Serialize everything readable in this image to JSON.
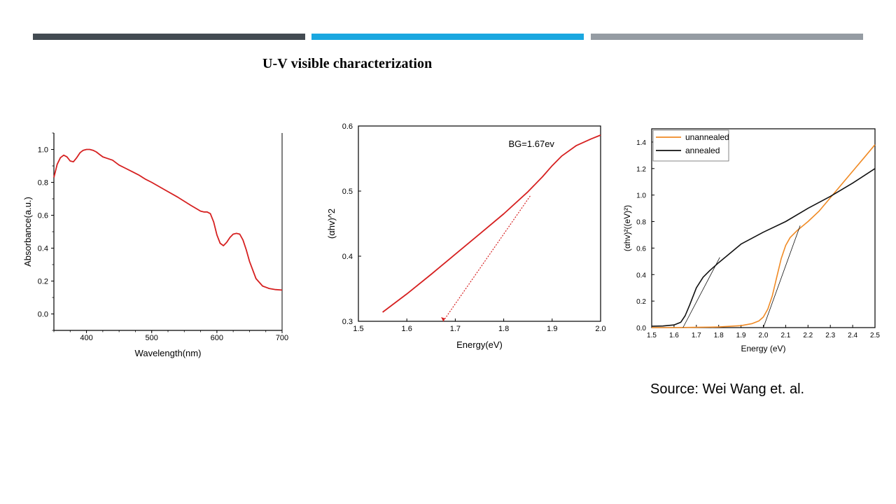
{
  "slide": {
    "title": "U-V visible characterization",
    "source": "Source: Wei Wang et. al.",
    "colors": {
      "bar_dark": "#434b52",
      "bar_blue": "#1aa7e0",
      "bar_grey": "#959ca3"
    }
  },
  "chart_data": [
    {
      "type": "line",
      "title": "",
      "xlabel": "Wavelength(nm)",
      "ylabel": "Absorbance(a.u.)",
      "xlim": [
        350,
        700
      ],
      "ylim": [
        -0.1,
        1.1
      ],
      "xticks": [
        400,
        500,
        600,
        700
      ],
      "yticks": [
        0.0,
        0.2,
        0.4,
        0.6,
        0.8,
        1.0
      ],
      "xtick_labels": [
        "400",
        "500",
        "600",
        "700"
      ],
      "ytick_labels": [
        "0.0",
        "0.2",
        "0.4",
        "0.6",
        "0.8",
        "1.0"
      ],
      "grid": false,
      "series": [
        {
          "color": "#d62020",
          "x": [
            350,
            355,
            360,
            365,
            370,
            375,
            380,
            385,
            390,
            395,
            400,
            405,
            410,
            415,
            420,
            425,
            430,
            440,
            450,
            460,
            470,
            480,
            490,
            500,
            520,
            540,
            560,
            575,
            580,
            585,
            590,
            595,
            600,
            605,
            610,
            615,
            620,
            625,
            630,
            635,
            640,
            645,
            650,
            660,
            670,
            680,
            690,
            700
          ],
          "y": [
            0.83,
            0.91,
            0.95,
            0.965,
            0.955,
            0.93,
            0.925,
            0.95,
            0.98,
            0.995,
            1.0,
            1.0,
            0.995,
            0.985,
            0.97,
            0.955,
            0.948,
            0.935,
            0.905,
            0.885,
            0.865,
            0.845,
            0.82,
            0.8,
            0.755,
            0.71,
            0.66,
            0.625,
            0.62,
            0.62,
            0.61,
            0.56,
            0.48,
            0.43,
            0.415,
            0.435,
            0.465,
            0.485,
            0.49,
            0.485,
            0.45,
            0.39,
            0.32,
            0.215,
            0.17,
            0.155,
            0.148,
            0.145
          ]
        }
      ]
    },
    {
      "type": "line",
      "title": "",
      "xlabel": "Energy(eV)",
      "ylabel": "(αhv)^2",
      "xlim": [
        1.5,
        2.0
      ],
      "ylim": [
        0.3,
        0.6
      ],
      "xticks": [
        1.5,
        1.6,
        1.7,
        1.8,
        1.9,
        2.0
      ],
      "yticks": [
        0.3,
        0.4,
        0.5,
        0.6
      ],
      "xtick_labels": [
        "1.5",
        "1.6",
        "1.7",
        "1.8",
        "1.9",
        "2.0"
      ],
      "ytick_labels": [
        "0.3",
        "0.4",
        "0.5",
        "0.6"
      ],
      "grid": false,
      "annotations": [
        {
          "text": "BG=1.67ev",
          "x": 1.81,
          "y": 0.568
        }
      ],
      "series": [
        {
          "color": "#d62020",
          "x": [
            1.55,
            1.6,
            1.65,
            1.7,
            1.75,
            1.8,
            1.85,
            1.88,
            1.9,
            1.92,
            1.95,
            1.98,
            2.0
          ],
          "y": [
            0.314,
            0.342,
            0.372,
            0.403,
            0.434,
            0.465,
            0.499,
            0.522,
            0.539,
            0.554,
            0.57,
            0.58,
            0.586
          ]
        },
        {
          "color": "#d62020",
          "dashed": true,
          "x": [
            1.675,
            1.855
          ],
          "y": [
            0.3,
            0.493
          ]
        }
      ]
    },
    {
      "type": "line",
      "title": "",
      "xlabel": "Energy (eV)",
      "ylabel": "(αhv)²((eV)²)",
      "xlim": [
        1.5,
        2.5
      ],
      "ylim": [
        0.0,
        1.5
      ],
      "xticks": [
        1.5,
        1.6,
        1.7,
        1.8,
        1.9,
        2.0,
        2.1,
        2.2,
        2.3,
        2.4,
        2.5
      ],
      "yticks": [
        0.0,
        0.2,
        0.4,
        0.6,
        0.8,
        1.0,
        1.2,
        1.4
      ],
      "xtick_labels": [
        "1.5",
        "1.6",
        "1.7",
        "1.8",
        "1.9",
        "2.0",
        "2.1",
        "2.2",
        "2.3",
        "2.4",
        "2.5"
      ],
      "ytick_labels": [
        "0.0",
        "0.2",
        "0.4",
        "0.6",
        "0.8",
        "1.0",
        "1.2",
        "1.4"
      ],
      "grid": false,
      "legend": "top-left",
      "series": [
        {
          "name": "unannealed",
          "color": "#f08a24",
          "x": [
            1.5,
            1.6,
            1.7,
            1.8,
            1.9,
            1.95,
            1.98,
            2.0,
            2.02,
            2.04,
            2.06,
            2.08,
            2.1,
            2.12,
            2.15,
            2.2,
            2.25,
            2.3,
            2.35,
            2.4,
            2.45,
            2.5
          ],
          "y": [
            0.0,
            0.0,
            0.002,
            0.005,
            0.015,
            0.03,
            0.05,
            0.08,
            0.14,
            0.24,
            0.38,
            0.52,
            0.62,
            0.68,
            0.73,
            0.8,
            0.88,
            0.98,
            1.08,
            1.18,
            1.28,
            1.38
          ]
        },
        {
          "name": "annealed",
          "color": "#111111",
          "x": [
            1.5,
            1.55,
            1.6,
            1.63,
            1.65,
            1.67,
            1.7,
            1.73,
            1.76,
            1.8,
            1.85,
            1.9,
            2.0,
            2.1,
            2.2,
            2.3,
            2.4,
            2.5
          ],
          "y": [
            0.01,
            0.012,
            0.02,
            0.04,
            0.09,
            0.17,
            0.3,
            0.38,
            0.43,
            0.49,
            0.56,
            0.63,
            0.72,
            0.8,
            0.9,
            0.99,
            1.09,
            1.2
          ]
        },
        {
          "color": "#111111",
          "thin": true,
          "x": [
            1.64,
            1.805
          ],
          "y": [
            0.0,
            0.53
          ]
        },
        {
          "color": "#111111",
          "thin": true,
          "x": [
            2.0,
            2.165
          ],
          "y": [
            0.0,
            0.77
          ]
        }
      ]
    }
  ]
}
